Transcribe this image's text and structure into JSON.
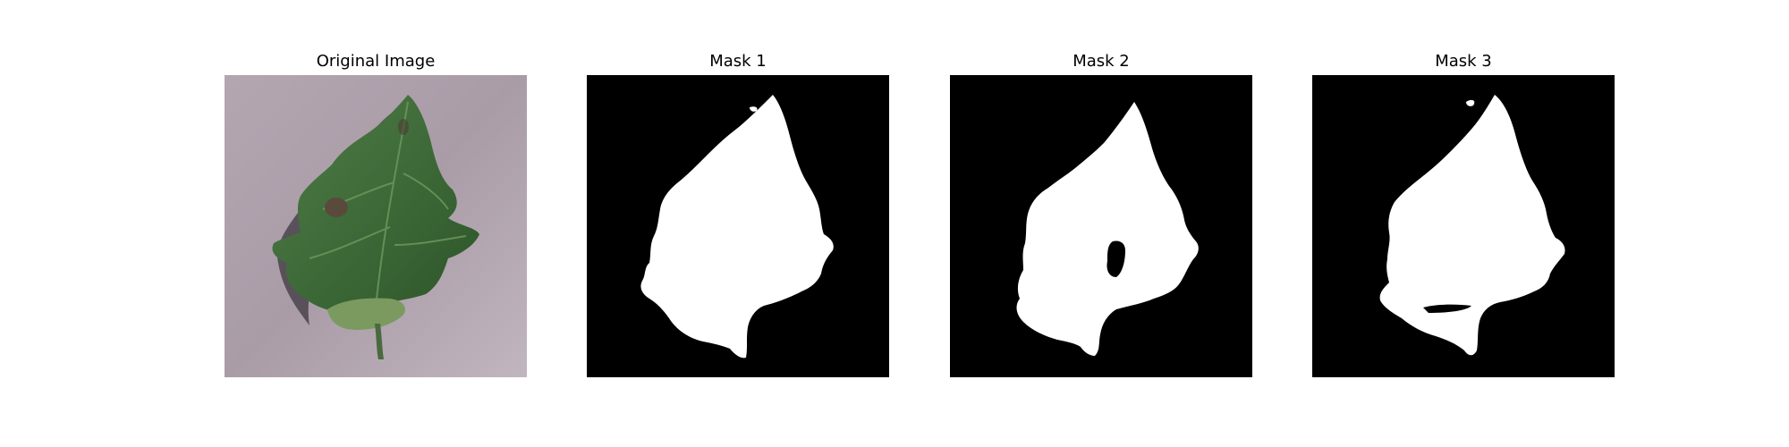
{
  "figure": {
    "panels": [
      {
        "title": "Original Image",
        "content": "leaf-photo"
      },
      {
        "title": "Mask 1",
        "content": "binary-mask"
      },
      {
        "title": "Mask 2",
        "content": "binary-mask"
      },
      {
        "title": "Mask 3",
        "content": "binary-mask"
      }
    ]
  },
  "colors": {
    "mask_background": "#000000",
    "mask_foreground": "#ffffff",
    "photo_background": "#a89ba6",
    "leaf_green": "#3f6b3a"
  }
}
